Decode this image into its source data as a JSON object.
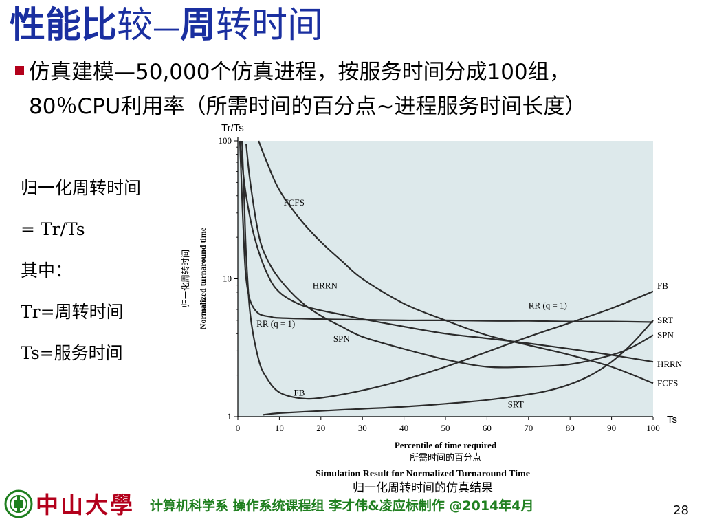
{
  "title": {
    "part1": "性能比",
    "part2": "较",
    "dash": "—",
    "part3": "周",
    "part4": "转时间"
  },
  "bullet": {
    "line1": "仿真建模—50,000个仿真进程，按服务时间分成100组，",
    "line2": "80％CPU利用率（所需时间的百分点~进程服务时间长度）"
  },
  "notes": [
    "归一化周转时间",
    "= Tr/Ts",
    "其中：",
    "Tr=周转时间",
    "Ts=服务时间"
  ],
  "chart_data": {
    "type": "line",
    "title": "Simulation Result for Normalized Turnaround Time",
    "subtitle": "归一化周转时间的仿真结果",
    "xlabel": "Percentile of time required",
    "xlabel_cn": "所需时间的百分点",
    "ylabel": "Normalized turnaround time",
    "ylabel_cn": "归一化周转时间",
    "y_axis_tag": "Tr/Ts",
    "x_axis_tag": "Ts",
    "x_scale": "linear",
    "y_scale": "log",
    "xlim": [
      0,
      100
    ],
    "ylim": [
      1,
      100
    ],
    "x_ticks": [
      "0",
      "10",
      "20",
      "30",
      "40",
      "50",
      "60",
      "70",
      "80",
      "90",
      "100"
    ],
    "y_ticks": [
      "1",
      "10",
      "100"
    ],
    "plot_background": "#dde9eb",
    "line_color": "#2b2b2b",
    "grid": false,
    "series": [
      {
        "name": "FCFS",
        "x": [
          5,
          7,
          10,
          15,
          20,
          25,
          30,
          40,
          50,
          60,
          70,
          80,
          90,
          100
        ],
        "y": [
          100,
          70,
          44,
          27,
          18.5,
          13.5,
          10,
          6.6,
          5,
          3.9,
          3.3,
          2.8,
          2.3,
          1.75
        ]
      },
      {
        "name": "HRRN",
        "x": [
          0.5,
          1,
          2,
          4,
          7,
          10,
          15,
          20,
          25,
          30,
          40,
          50,
          60,
          70,
          80,
          90,
          100
        ],
        "y": [
          100,
          70,
          40,
          20,
          11,
          8,
          6.5,
          5.9,
          5.5,
          5.1,
          4.5,
          4,
          3.7,
          3.4,
          3.1,
          2.8,
          2.5
        ]
      },
      {
        "name": "SPN",
        "x": [
          2,
          3,
          5,
          7,
          10,
          15,
          20,
          25,
          30,
          40,
          50,
          60,
          70,
          80,
          90,
          95,
          100
        ],
        "y": [
          95,
          50,
          21,
          14,
          10,
          6.9,
          5.4,
          4.5,
          3.8,
          3.1,
          2.6,
          2.3,
          2.3,
          2.4,
          2.8,
          3.2,
          3.9
        ]
      },
      {
        "name": "RR (q = 1)",
        "x": [
          0.5,
          1,
          1.5,
          2,
          3,
          5,
          8,
          10,
          20,
          30,
          40,
          50,
          60,
          70,
          80,
          90,
          100
        ],
        "y": [
          100,
          40,
          17,
          10,
          6.9,
          5.6,
          5.3,
          5.2,
          5.1,
          5.05,
          5,
          5,
          4.95,
          4.95,
          4.9,
          4.9,
          4.85
        ]
      },
      {
        "name": "FB",
        "x": [
          1,
          1.5,
          2,
          3,
          5,
          7,
          10,
          15,
          20,
          30,
          40,
          50,
          60,
          70,
          80,
          90,
          100
        ],
        "y": [
          100,
          40,
          15,
          5.5,
          2.6,
          1.9,
          1.5,
          1.36,
          1.37,
          1.55,
          1.85,
          2.3,
          2.95,
          3.8,
          4.8,
          6.1,
          8.1
        ]
      },
      {
        "name": "SRT",
        "x": [
          6,
          10,
          20,
          30,
          40,
          50,
          60,
          70,
          75,
          80,
          85,
          90,
          95,
          100
        ],
        "y": [
          1.03,
          1.06,
          1.1,
          1.14,
          1.18,
          1.24,
          1.32,
          1.45,
          1.55,
          1.72,
          2.0,
          2.5,
          3.4,
          5.0
        ]
      }
    ],
    "inline_labels": [
      {
        "text": "FCFS",
        "x": 11,
        "y": 34
      },
      {
        "text": "HRRN",
        "x": 18,
        "y": 8.5
      },
      {
        "text": "RR (q = 1)",
        "x": 4.5,
        "y": 4.5
      },
      {
        "text": "SPN",
        "x": 23,
        "y": 3.5
      },
      {
        "text": "FB",
        "x": 13.5,
        "y": 1.42
      },
      {
        "text": "RR (q = 1)",
        "x": 70,
        "y": 6.1
      },
      {
        "text": "SRT",
        "x": 65,
        "y": 1.17
      }
    ]
  },
  "footer": {
    "university": "中山大學",
    "text": "计算机科学系 操作系统课程组 李才伟&凌应标制作 @2014年4月",
    "page": "28",
    "brand_color": "#b3001b",
    "text_color": "#1f7f1f",
    "logo_icon": "sysu-emblem-icon"
  }
}
